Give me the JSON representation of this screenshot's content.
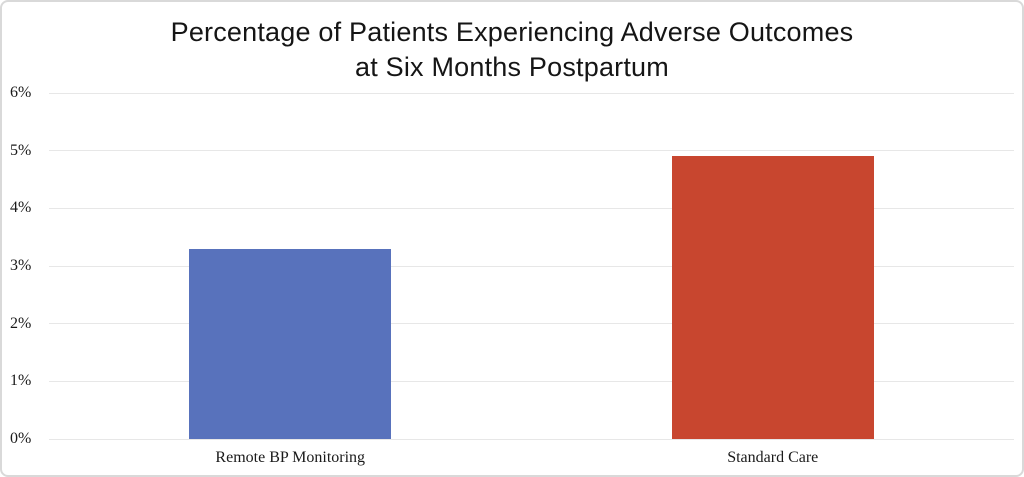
{
  "chart_data": {
    "type": "bar",
    "title": "Percentage of Patients Experiencing Adverse Outcomes at Six Months Postpartum",
    "title_lines": [
      "Percentage of Patients Experiencing Adverse Outcomes",
      "at Six Months Postpartum"
    ],
    "categories": [
      "Remote BP Monitoring",
      "Standard Care"
    ],
    "values": [
      3.3,
      4.9
    ],
    "bar_colors": [
      "#5872bc",
      "#c8462f"
    ],
    "xlabel": "",
    "ylabel": "",
    "ylim": [
      0,
      6
    ],
    "ytick_step": 1,
    "ytick_labels": [
      "0%",
      "1%",
      "2%",
      "3%",
      "4%",
      "5%",
      "6%"
    ],
    "grid": "horizontal",
    "gridline_color": "#e7e7e7",
    "legend": "none",
    "frame_border_color": "#d9d9d9",
    "background_color": "#ffffff"
  }
}
